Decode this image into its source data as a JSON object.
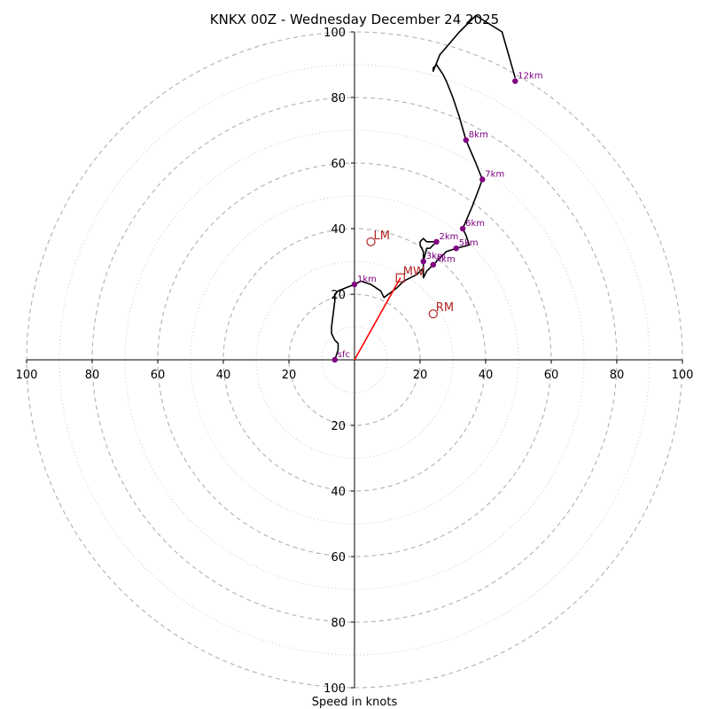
{
  "chart_data": {
    "type": "hodograph",
    "title": "KNKX 00Z - Wednesday December 24 2025",
    "xlabel": "Speed in knots",
    "range": [
      -100,
      100
    ],
    "rings_major": [
      20,
      40,
      60,
      80,
      100
    ],
    "rings_minor": [
      10,
      30,
      50,
      70,
      90
    ],
    "x_ticks": [
      {
        "value": -100,
        "label": "100"
      },
      {
        "value": -80,
        "label": "80"
      },
      {
        "value": -60,
        "label": "60"
      },
      {
        "value": -40,
        "label": "40"
      },
      {
        "value": -20,
        "label": "20"
      },
      {
        "value": 20,
        "label": "20"
      },
      {
        "value": 40,
        "label": "40"
      },
      {
        "value": 60,
        "label": "60"
      },
      {
        "value": 80,
        "label": "80"
      },
      {
        "value": 100,
        "label": "100"
      }
    ],
    "y_ticks": [
      {
        "value": 100,
        "label": "100"
      },
      {
        "value": 80,
        "label": "80"
      },
      {
        "value": 60,
        "label": "60"
      },
      {
        "value": 40,
        "label": "40"
      },
      {
        "value": 20,
        "label": "20"
      },
      {
        "value": -20,
        "label": "20"
      },
      {
        "value": -40,
        "label": "40"
      },
      {
        "value": -60,
        "label": "60"
      },
      {
        "value": -80,
        "label": "80"
      },
      {
        "value": -100,
        "label": "100"
      }
    ],
    "trace": [
      [
        -6,
        0
      ],
      [
        -5,
        3
      ],
      [
        -5,
        4
      ],
      [
        -5,
        5
      ],
      [
        -6,
        6
      ],
      [
        -7,
        8
      ],
      [
        -7,
        10
      ],
      [
        -6,
        18
      ],
      [
        -6,
        20
      ],
      [
        -5,
        21
      ],
      [
        0,
        23
      ],
      [
        2,
        24
      ],
      [
        5,
        23
      ],
      [
        8,
        21
      ],
      [
        9,
        19
      ],
      [
        13,
        22
      ],
      [
        15,
        24
      ],
      [
        19,
        26
      ],
      [
        21,
        28
      ],
      [
        21,
        30
      ],
      [
        21,
        33
      ],
      [
        20,
        35
      ],
      [
        20,
        36
      ],
      [
        21,
        37
      ],
      [
        22,
        36
      ],
      [
        24,
        36
      ],
      [
        25,
        36
      ],
      [
        23,
        34
      ],
      [
        22,
        34
      ],
      [
        21,
        30
      ],
      [
        21,
        27
      ],
      [
        21,
        25
      ],
      [
        22,
        27
      ],
      [
        24,
        29
      ],
      [
        26,
        31
      ],
      [
        28,
        33
      ],
      [
        31,
        34
      ],
      [
        35,
        35
      ],
      [
        34,
        38
      ],
      [
        33,
        40
      ],
      [
        36,
        47
      ],
      [
        39,
        55
      ],
      [
        37,
        60
      ],
      [
        34,
        67
      ],
      [
        32,
        74
      ],
      [
        30,
        80
      ],
      [
        28,
        85
      ],
      [
        27,
        87
      ],
      [
        25,
        90
      ],
      [
        24,
        89
      ],
      [
        24,
        88
      ],
      [
        26,
        93
      ],
      [
        32,
        100
      ],
      [
        37,
        105
      ],
      [
        45,
        100
      ],
      [
        49,
        86
      ]
    ],
    "height_markers": [
      {
        "label": "sfc",
        "u": -6,
        "v": 0
      },
      {
        "label": "1km",
        "u": 0,
        "v": 23
      },
      {
        "label": "2km",
        "u": 25,
        "v": 36
      },
      {
        "label": "3km",
        "u": 21,
        "v": 30
      },
      {
        "label": "4km",
        "u": 24,
        "v": 29
      },
      {
        "label": "5km",
        "u": 31,
        "v": 34
      },
      {
        "label": "6km",
        "u": 33,
        "v": 40
      },
      {
        "label": "7km",
        "u": 39,
        "v": 55
      },
      {
        "label": "8km",
        "u": 34,
        "v": 67
      },
      {
        "label": "12km",
        "u": 49,
        "v": 85
      }
    ],
    "motions": [
      {
        "label": "LM",
        "u": 5,
        "v": 36,
        "shape": "circle"
      },
      {
        "label": "MW",
        "u": 14,
        "v": 25,
        "shape": "square"
      },
      {
        "label": "RM",
        "u": 24,
        "v": 14,
        "shape": "circle"
      }
    ],
    "mean_wind_vector": {
      "u": 14,
      "v": 25
    },
    "colors": {
      "trace": "#000000",
      "marker": "#800080",
      "motion": "#b22222",
      "vector": "#ff0000",
      "grid": "#b0b0b0",
      "axis": "#000000"
    }
  }
}
